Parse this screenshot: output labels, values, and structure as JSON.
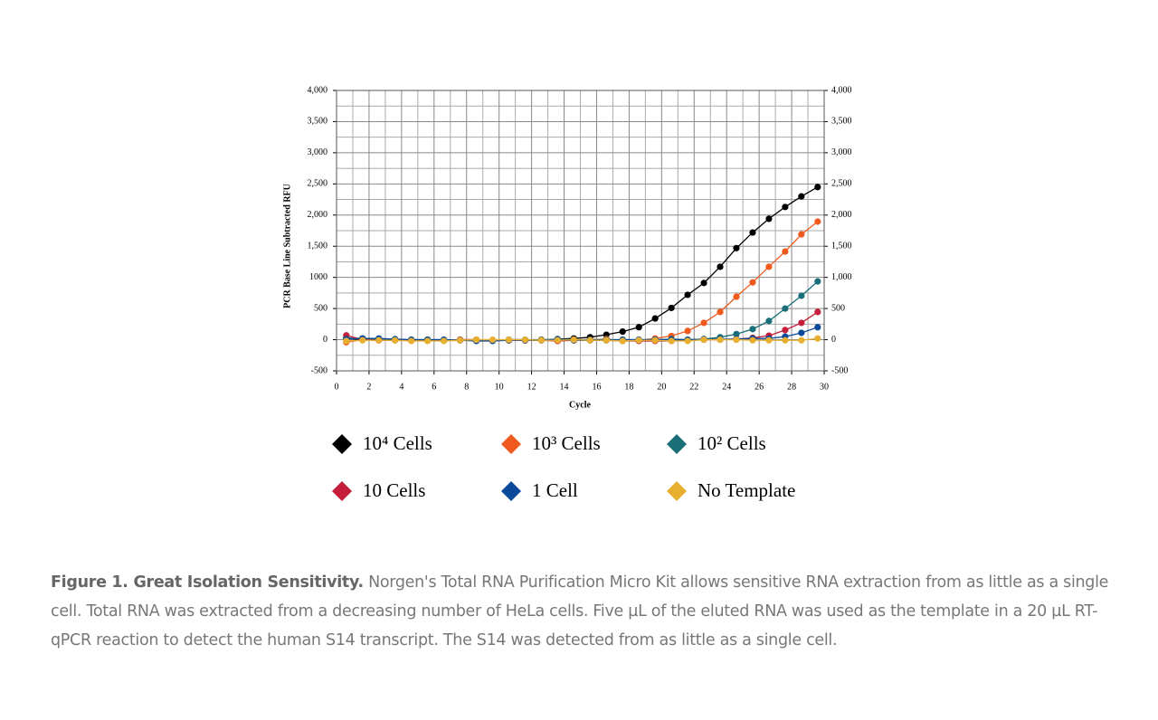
{
  "chart_data": {
    "type": "line",
    "ylabel": "PCR Base Line Subtracted RFU",
    "xlabel": "Cycle",
    "x": [
      0.6,
      1.6,
      2.6,
      3.6,
      4.6,
      5.6,
      6.6,
      7.6,
      8.6,
      9.6,
      10.6,
      11.6,
      12.6,
      13.6,
      14.6,
      15.6,
      16.6,
      17.6,
      18.6,
      19.6,
      20.6,
      21.6,
      22.6,
      23.6,
      24.6,
      25.6,
      26.6,
      27.6,
      28.6,
      29.6
    ],
    "xlim": [
      0,
      30
    ],
    "xticks": [
      0,
      2,
      4,
      6,
      8,
      10,
      12,
      14,
      16,
      18,
      20,
      22,
      24,
      26,
      28,
      30
    ],
    "ylim": [
      -500,
      4000
    ],
    "yticks": [
      {
        "value": 4000,
        "label": "4,000"
      },
      {
        "value": 3500,
        "label": "3,500"
      },
      {
        "value": 3000,
        "label": "3,000"
      },
      {
        "value": 2500,
        "label": "2,500"
      },
      {
        "value": 2000,
        "label": "2,000"
      },
      {
        "value": 1500,
        "label": "1,500"
      },
      1000,
      500,
      0,
      -500
    ],
    "y2lim": [
      -500,
      4000
    ],
    "y2ticks": [
      {
        "value": 4000,
        "label": "4,000"
      },
      {
        "value": 3500,
        "label": "3,500"
      },
      {
        "value": 3000,
        "label": "3,000"
      },
      {
        "value": 2500,
        "label": "2,500"
      },
      {
        "value": 2000,
        "label": "2,000"
      },
      {
        "value": 1500,
        "label": "1,500"
      },
      {
        "value": 1000,
        "label": "1,000"
      },
      500,
      0,
      -500
    ],
    "grid": true,
    "series": [
      {
        "name": "10⁴ Cells",
        "color": "#000000",
        "values": [
          20,
          0,
          10,
          0,
          -10,
          0,
          -10,
          0,
          0,
          -10,
          0,
          0,
          -10,
          10,
          20,
          40,
          80,
          130,
          200,
          340,
          510,
          720,
          910,
          1170,
          1470,
          1720,
          1940,
          2130,
          2300,
          2450
        ]
      },
      {
        "name": "10³ Cells",
        "color": "#f05a1e",
        "values": [
          -40,
          0,
          -10,
          0,
          -10,
          -10,
          -10,
          0,
          0,
          -10,
          -10,
          -10,
          0,
          -20,
          0,
          0,
          10,
          -10,
          -10,
          20,
          60,
          140,
          270,
          445,
          690,
          920,
          1170,
          1415,
          1690,
          1895
        ]
      },
      {
        "name": "10² Cells",
        "color": "#1a6e78",
        "values": [
          30,
          20,
          10,
          0,
          0,
          0,
          0,
          -10,
          -10,
          -10,
          0,
          0,
          0,
          10,
          0,
          0,
          0,
          0,
          0,
          0,
          10,
          0,
          10,
          40,
          90,
          170,
          300,
          500,
          705,
          935
        ]
      },
      {
        "name": "10 Cells",
        "color": "#c41e3a",
        "values": [
          70,
          0,
          -10,
          -10,
          -10,
          -10,
          -10,
          -10,
          -10,
          -10,
          -10,
          -10,
          -10,
          -20,
          -10,
          -10,
          -10,
          -20,
          -20,
          -20,
          -20,
          -10,
          0,
          0,
          10,
          30,
          65,
          155,
          270,
          445
        ]
      },
      {
        "name": "1 Cell",
        "color": "#0b4a9a",
        "values": [
          10,
          20,
          20,
          10,
          0,
          0,
          0,
          -10,
          -20,
          -20,
          -10,
          -10,
          -10,
          0,
          -10,
          -10,
          -10,
          0,
          0,
          0,
          0,
          0,
          10,
          10,
          10,
          20,
          20,
          50,
          110,
          200
        ]
      },
      {
        "name": "No Template",
        "color": "#e8b030",
        "values": [
          -20,
          -10,
          -10,
          -10,
          -20,
          -20,
          -20,
          -10,
          0,
          0,
          0,
          0,
          -10,
          -10,
          0,
          -10,
          -10,
          -20,
          -10,
          -10,
          -20,
          -20,
          0,
          0,
          0,
          -10,
          -10,
          -10,
          -10,
          20
        ]
      }
    ]
  },
  "caption": {
    "title": "Figure 1. Great Isolation Sensitivity.",
    "text": "Norgen's Total RNA Purification Micro Kit allows sensitive RNA extraction from as little as a single cell. Total RNA was extracted from a decreasing number of HeLa cells. Five µL of the eluted RNA was used as the template in a 20 µL RT-qPCR reaction to detect the human S14 transcript. The S14 was detected from as little as a single cell."
  }
}
